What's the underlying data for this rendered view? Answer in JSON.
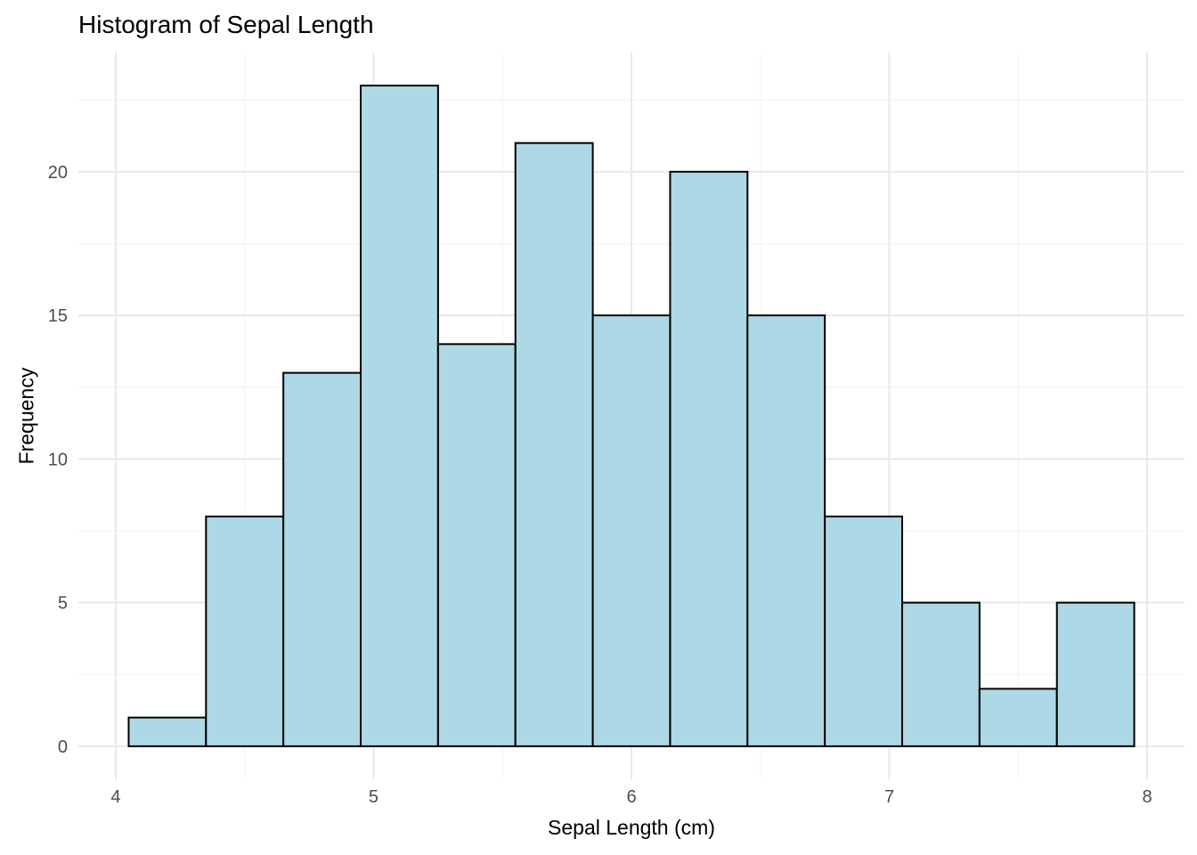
{
  "page": {
    "background": "#FFFFFF"
  },
  "chart_data": {
    "type": "bar",
    "variant": "histogram",
    "title": "Histogram of Sepal Length",
    "xlabel": "Sepal Length (cm)",
    "ylabel": "Frequency",
    "bin_edges": [
      4.05,
      4.35,
      4.65,
      4.95,
      5.25,
      5.55,
      5.85,
      6.15,
      6.45,
      6.75,
      7.05,
      7.35,
      7.65,
      7.95
    ],
    "counts": [
      1,
      8,
      13,
      23,
      14,
      21,
      15,
      20,
      15,
      8,
      5,
      2,
      5
    ],
    "x_ticks": [
      4,
      5,
      6,
      7,
      8
    ],
    "x_minor_ticks": [
      4.5,
      5.5,
      6.5,
      7.5
    ],
    "y_ticks": [
      0,
      5,
      10,
      15,
      20
    ],
    "y_minor_ticks": [
      2.5,
      7.5,
      12.5,
      17.5,
      22.5
    ],
    "xlim": [
      3.855,
      8.145
    ],
    "ylim": [
      -1.15,
      24.15
    ],
    "grid": "major-and-minor",
    "legend_position": "none",
    "colors": {
      "bar_fill": "#ADD8E6",
      "bar_stroke": "#000000",
      "grid_major": "#E8E8E8",
      "grid_minor": "#F2F2F2",
      "tick_label": "#4D4D4D",
      "axis_title": "#000000",
      "title": "#000000",
      "background": "#FFFFFF"
    }
  }
}
